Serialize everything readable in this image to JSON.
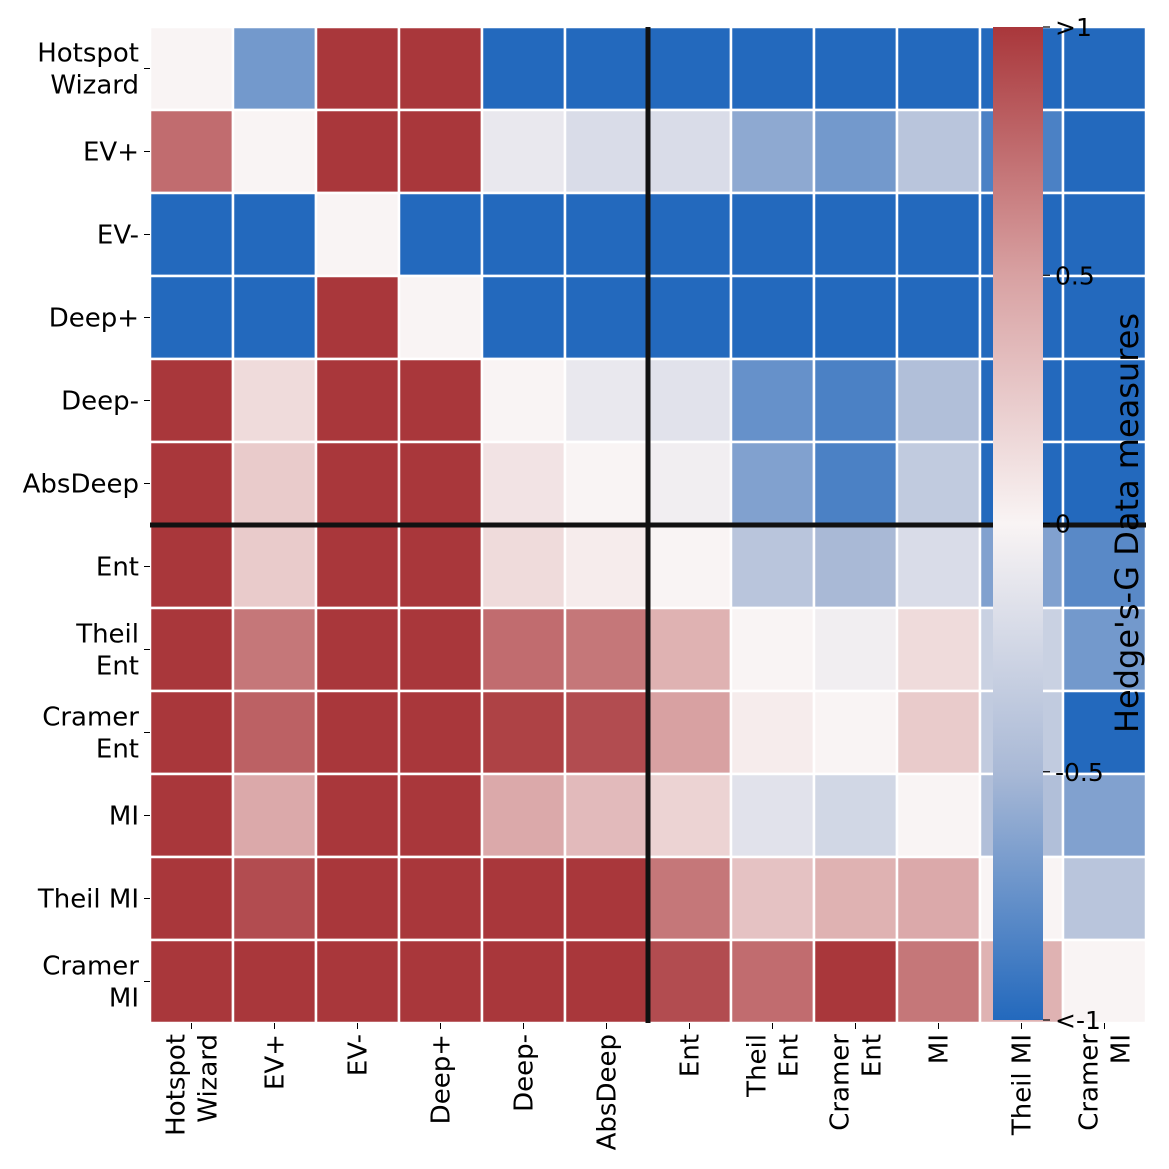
{
  "chart_data": {
    "type": "heatmap",
    "title": "",
    "xlabel": "",
    "ylabel": "",
    "row_labels": [
      [
        "Hotspot",
        "Wizard"
      ],
      [
        "EV+"
      ],
      [
        "EV-"
      ],
      [
        "Deep+"
      ],
      [
        "Deep-"
      ],
      [
        "AbsDeep"
      ],
      [
        "Ent"
      ],
      [
        "Theil",
        "Ent"
      ],
      [
        "Cramer",
        "Ent"
      ],
      [
        "MI"
      ],
      [
        "Theil MI"
      ],
      [
        "Cramer",
        "MI"
      ]
    ],
    "col_labels": [
      [
        "Hotspot",
        "Wizard"
      ],
      [
        "EV+"
      ],
      [
        "EV-"
      ],
      [
        "Deep+"
      ],
      [
        "Deep-"
      ],
      [
        "AbsDeep"
      ],
      [
        "Ent"
      ],
      [
        "Theil",
        "Ent"
      ],
      [
        "Cramer",
        "Ent"
      ],
      [
        "MI"
      ],
      [
        "Theil MI"
      ],
      [
        "Cramer",
        "MI"
      ]
    ],
    "values": [
      [
        0.0,
        -0.7,
        1,
        1,
        -1,
        -1,
        -1,
        -1,
        -1,
        -1,
        -1,
        -1
      ],
      [
        0.75,
        0.0,
        1,
        1,
        -0.1,
        -0.2,
        -0.2,
        -0.6,
        -0.7,
        -0.4,
        -0.85,
        -1
      ],
      [
        -1,
        -1,
        0.0,
        -1,
        -1,
        -1,
        -1,
        -1,
        -1,
        -1,
        -1,
        -1
      ],
      [
        -1,
        -1,
        1,
        0.0,
        -1,
        -1,
        -1,
        -1,
        -1,
        -1,
        -1,
        -1
      ],
      [
        1,
        0.15,
        1,
        1,
        0.0,
        -0.1,
        -0.15,
        -0.75,
        -0.85,
        -0.45,
        -1,
        -1
      ],
      [
        1,
        0.25,
        1,
        1,
        0.1,
        0.0,
        -0.05,
        -0.65,
        -0.85,
        -0.35,
        -1,
        -1
      ],
      [
        1,
        0.25,
        1,
        1,
        0.15,
        0.05,
        0.0,
        -0.4,
        -0.5,
        -0.2,
        -0.65,
        -0.8
      ],
      [
        1,
        0.7,
        1,
        1,
        0.75,
        0.7,
        0.4,
        0.0,
        -0.05,
        0.15,
        -0.3,
        -0.7
      ],
      [
        1,
        0.8,
        1,
        1,
        0.95,
        0.9,
        0.5,
        0.05,
        0.0,
        0.25,
        -0.35,
        -1
      ],
      [
        1,
        0.45,
        1,
        1,
        0.45,
        0.35,
        0.2,
        -0.15,
        -0.25,
        0.0,
        -0.45,
        -0.65
      ],
      [
        1,
        0.9,
        1,
        1,
        1,
        1,
        0.7,
        0.3,
        0.4,
        0.45,
        0.0,
        -0.4
      ],
      [
        1,
        1,
        1,
        1,
        1,
        1,
        0.9,
        0.75,
        1,
        0.7,
        0.4,
        0.0
      ]
    ],
    "vmin": -1,
    "vmax": 1,
    "colormap": "vlag",
    "colorbar": {
      "label": "Hedge's-G Data measures",
      "ticks": [
        {
          "value": 1,
          "label": ">1"
        },
        {
          "value": 0.5,
          "label": "0.5"
        },
        {
          "value": 0,
          "label": "0"
        },
        {
          "value": -0.5,
          "label": "-0.5"
        },
        {
          "value": -1,
          "label": "<-1"
        }
      ]
    },
    "divider_after_index": 6,
    "colors": {
      "low": "#2369bd",
      "mid": "#f9f4f4",
      "high": "#a9373b",
      "divider": "#111111",
      "cell_border": "#ffffff"
    }
  }
}
